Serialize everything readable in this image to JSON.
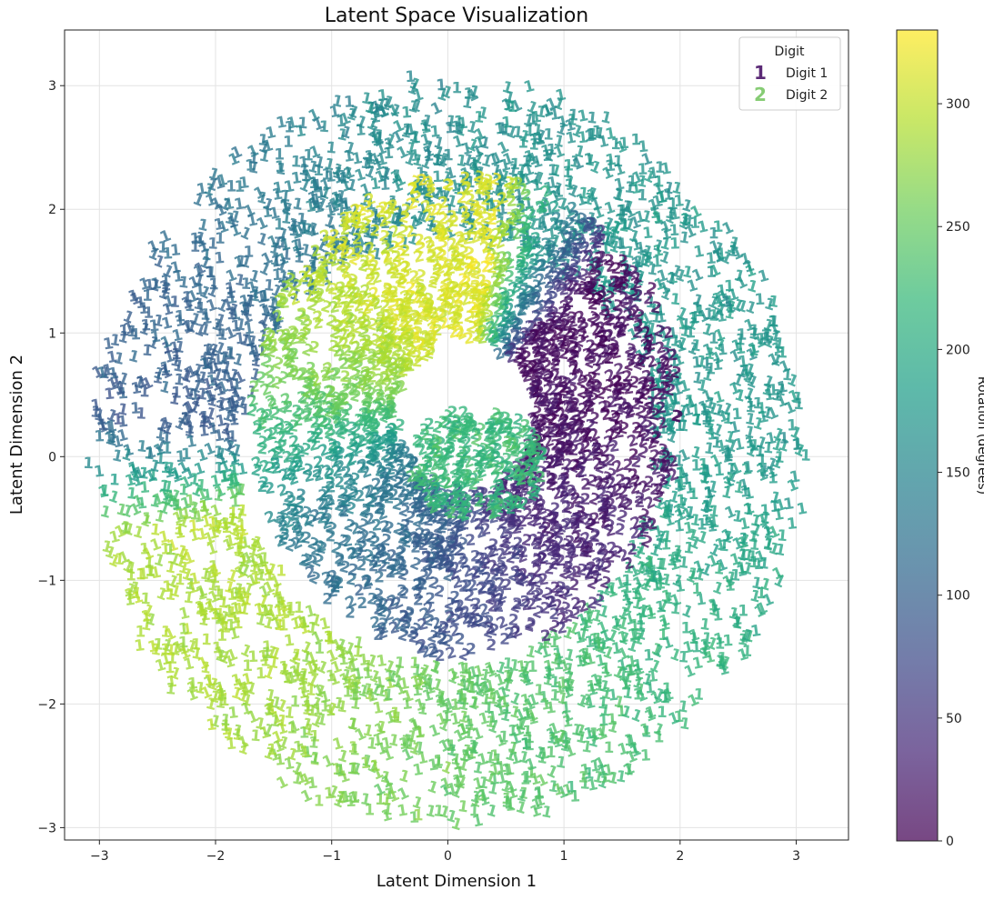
{
  "chart_data": {
    "type": "scatter",
    "title": "Latent Space Visualization",
    "xlabel": "Latent Dimension 1",
    "ylabel": "Latent Dimension 2",
    "xlim": [
      -3.3,
      3.45
    ],
    "ylim": [
      -3.1,
      3.45
    ],
    "xticks": [
      -3,
      -2,
      -1,
      0,
      1,
      2,
      3
    ],
    "yticks": [
      -3,
      -2,
      -1,
      0,
      1,
      2,
      3
    ],
    "xtick_labels": [
      "−3",
      "−2",
      "−1",
      "0",
      "1",
      "2",
      "3"
    ],
    "ytick_labels": [
      "−3",
      "−2",
      "−1",
      "0",
      "1",
      "2",
      "3"
    ],
    "grid": true,
    "marker": "digit glyphs",
    "legend": {
      "title": "Digit",
      "placement": "top-right",
      "entries": [
        {
          "glyph": "1",
          "label": "Digit 1",
          "color": "#5b2a76"
        },
        {
          "glyph": "2",
          "label": "Digit 2",
          "color": "#86cc74"
        }
      ]
    },
    "colorbar": {
      "label": "Rotation (degrees)",
      "colormap": "viridis",
      "range": [
        0,
        330
      ],
      "ticks": [
        0,
        50,
        100,
        150,
        200,
        250,
        300
      ],
      "tick_labels": [
        "0",
        "50",
        "100",
        "150",
        "200",
        "250",
        "300"
      ]
    },
    "series": [
      {
        "name": "Digit 1",
        "glyph": "1",
        "shape": "outer ring",
        "radius_range": [
          1.75,
          3.0
        ],
        "color_by": "rotation",
        "rotation_anchors": [
          {
            "angle_deg": 0,
            "rotation": 175
          },
          {
            "angle_deg": 60,
            "rotation": 170
          },
          {
            "angle_deg": 100,
            "rotation": 160
          },
          {
            "angle_deg": 150,
            "rotation": 105
          },
          {
            "angle_deg": 175,
            "rotation": 95
          },
          {
            "angle_deg": 195,
            "rotation": 290
          },
          {
            "angle_deg": 230,
            "rotation": 285
          },
          {
            "angle_deg": 270,
            "rotation": 250
          },
          {
            "angle_deg": 310,
            "rotation": 225
          },
          {
            "angle_deg": 360,
            "rotation": 175
          }
        ]
      },
      {
        "name": "Digit 2",
        "glyph": "2",
        "shape": "inner ring",
        "radius_range": [
          0.6,
          1.85
        ],
        "color_by": "rotation",
        "rotation_anchors": [
          {
            "angle_deg": 0,
            "rotation": 10
          },
          {
            "angle_deg": 45,
            "rotation": 10
          },
          {
            "angle_deg": 80,
            "rotation": 315
          },
          {
            "angle_deg": 130,
            "rotation": 305
          },
          {
            "angle_deg": 170,
            "rotation": 260
          },
          {
            "angle_deg": 210,
            "rotation": 140
          },
          {
            "angle_deg": 260,
            "rotation": 90
          },
          {
            "angle_deg": 300,
            "rotation": 40
          },
          {
            "angle_deg": 360,
            "rotation": 10
          }
        ],
        "center_cluster": {
          "center": [
            0.25,
            -0.1
          ],
          "radius": 0.45,
          "rotation": 220
        }
      }
    ]
  }
}
